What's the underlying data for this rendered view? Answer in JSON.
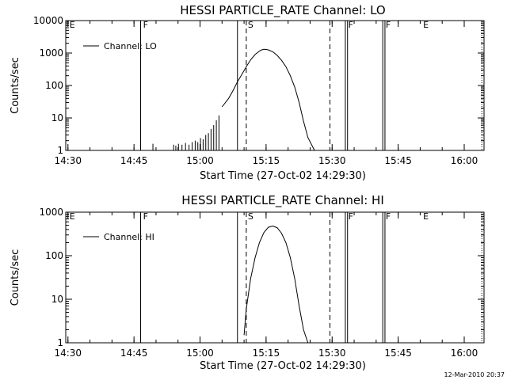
{
  "chart_data": [
    {
      "type": "line",
      "title": "HESSI PARTICLE_RATE Channel: LO",
      "xlabel": "Start Time (27-Oct-02 14:29:30)",
      "ylabel": "Counts/sec",
      "yscale": "log",
      "ylim": [
        1,
        10000
      ],
      "yticks": [
        {
          "v": 1,
          "label": "1"
        },
        {
          "v": 10,
          "label": "10"
        },
        {
          "v": 100,
          "label": "100"
        },
        {
          "v": 1000,
          "label": "1000"
        },
        {
          "v": 10000,
          "label": "10000"
        }
      ],
      "xlim_min": [
        0,
        95
      ],
      "xticks": [
        {
          "v": 0.5,
          "label": "14:30"
        },
        {
          "v": 15.5,
          "label": "14:45"
        },
        {
          "v": 30.5,
          "label": "15:00"
        },
        {
          "v": 45.5,
          "label": "15:15"
        },
        {
          "v": 60.5,
          "label": "15:30"
        },
        {
          "v": 75.5,
          "label": "15:45"
        },
        {
          "v": 90.5,
          "label": "16:00"
        }
      ],
      "legend": {
        "position": "top-left",
        "entries": [
          "Channel: LO"
        ]
      },
      "series": [
        {
          "name": "Channel: LO",
          "x": [
            35.5,
            37.0,
            38.0,
            39.0,
            40.0,
            41.0,
            42.0,
            43.0,
            44.0,
            44.5,
            45.0,
            45.5,
            46.0,
            47.0,
            48.0,
            49.0,
            50.0,
            51.0,
            52.0,
            53.0,
            54.0,
            55.0,
            56.5
          ],
          "y": [
            22,
            40,
            70,
            130,
            220,
            380,
            620,
            900,
            1150,
            1250,
            1300,
            1290,
            1250,
            1100,
            850,
            600,
            380,
            200,
            90,
            30,
            8,
            2.5,
            1
          ]
        }
      ],
      "noise": [
        {
          "x": 19.8,
          "y": 1.6
        },
        {
          "x": 24.5,
          "y": 1.5
        },
        {
          "x": 25.0,
          "y": 1.4
        },
        {
          "x": 25.6,
          "y": 1.6
        },
        {
          "x": 26.4,
          "y": 1.5
        },
        {
          "x": 27.2,
          "y": 1.7
        },
        {
          "x": 28.0,
          "y": 1.5
        },
        {
          "x": 28.7,
          "y": 1.8
        },
        {
          "x": 29.4,
          "y": 2.0
        },
        {
          "x": 30.0,
          "y": 1.8
        },
        {
          "x": 30.6,
          "y": 2.4
        },
        {
          "x": 31.2,
          "y": 2.2
        },
        {
          "x": 31.8,
          "y": 3.0
        },
        {
          "x": 32.4,
          "y": 3.4
        },
        {
          "x": 33.0,
          "y": 4.6
        },
        {
          "x": 33.6,
          "y": 6.0
        },
        {
          "x": 34.2,
          "y": 8.5
        },
        {
          "x": 34.8,
          "y": 12
        }
      ],
      "solid_markers": [
        17.0,
        39.0,
        63.5,
        64.0,
        72.0,
        72.5
      ],
      "dashed_markers": [
        41.0,
        60.0
      ],
      "dotted_markers": [
        17.0,
        94.5
      ],
      "flags": [
        {
          "x": 0.5,
          "label": "E"
        },
        {
          "x": 17.2,
          "label": "F"
        },
        {
          "x": 41.0,
          "label": "S"
        },
        {
          "x": 63.8,
          "label": "F"
        },
        {
          "x": 72.3,
          "label": "F"
        },
        {
          "x": 80.8,
          "label": "E"
        }
      ]
    },
    {
      "type": "line",
      "title": "HESSI PARTICLE_RATE Channel: HI",
      "xlabel": "Start Time (27-Oct-02 14:29:30)",
      "ylabel": "Counts/sec",
      "yscale": "log",
      "ylim": [
        1,
        1000
      ],
      "yticks": [
        {
          "v": 1,
          "label": "1"
        },
        {
          "v": 10,
          "label": "10"
        },
        {
          "v": 100,
          "label": "100"
        },
        {
          "v": 1000,
          "label": "1000"
        }
      ],
      "xlim_min": [
        0,
        95
      ],
      "xticks": [
        {
          "v": 0.5,
          "label": "14:30"
        },
        {
          "v": 15.5,
          "label": "14:45"
        },
        {
          "v": 30.5,
          "label": "15:00"
        },
        {
          "v": 45.5,
          "label": "15:15"
        },
        {
          "v": 60.5,
          "label": "15:30"
        },
        {
          "v": 75.5,
          "label": "15:45"
        },
        {
          "v": 90.5,
          "label": "16:00"
        }
      ],
      "legend": {
        "position": "top-left",
        "entries": [
          "Channel: HI"
        ]
      },
      "series": [
        {
          "name": "Channel: HI",
          "x": [
            40.5,
            41.0,
            42.0,
            43.0,
            44.0,
            45.0,
            46.0,
            47.0,
            48.0,
            49.0,
            50.0,
            51.0,
            52.0,
            53.0,
            54.0,
            55.0
          ],
          "y": [
            1.5,
            6,
            30,
            90,
            200,
            340,
            450,
            480,
            440,
            330,
            200,
            90,
            30,
            7,
            2,
            1
          ]
        }
      ],
      "noise": [],
      "solid_markers": [
        17.0,
        39.0,
        63.5,
        64.0,
        72.0,
        72.5
      ],
      "dashed_markers": [
        41.0,
        60.0
      ],
      "dotted_markers": [
        17.0,
        94.5
      ],
      "flags": [
        {
          "x": 0.5,
          "label": "E"
        },
        {
          "x": 17.2,
          "label": "F"
        },
        {
          "x": 41.0,
          "label": "S"
        },
        {
          "x": 63.8,
          "label": "F"
        },
        {
          "x": 72.3,
          "label": "F"
        },
        {
          "x": 80.8,
          "label": "E"
        }
      ]
    }
  ],
  "timestamp": "12-Mar-2010 20:37"
}
